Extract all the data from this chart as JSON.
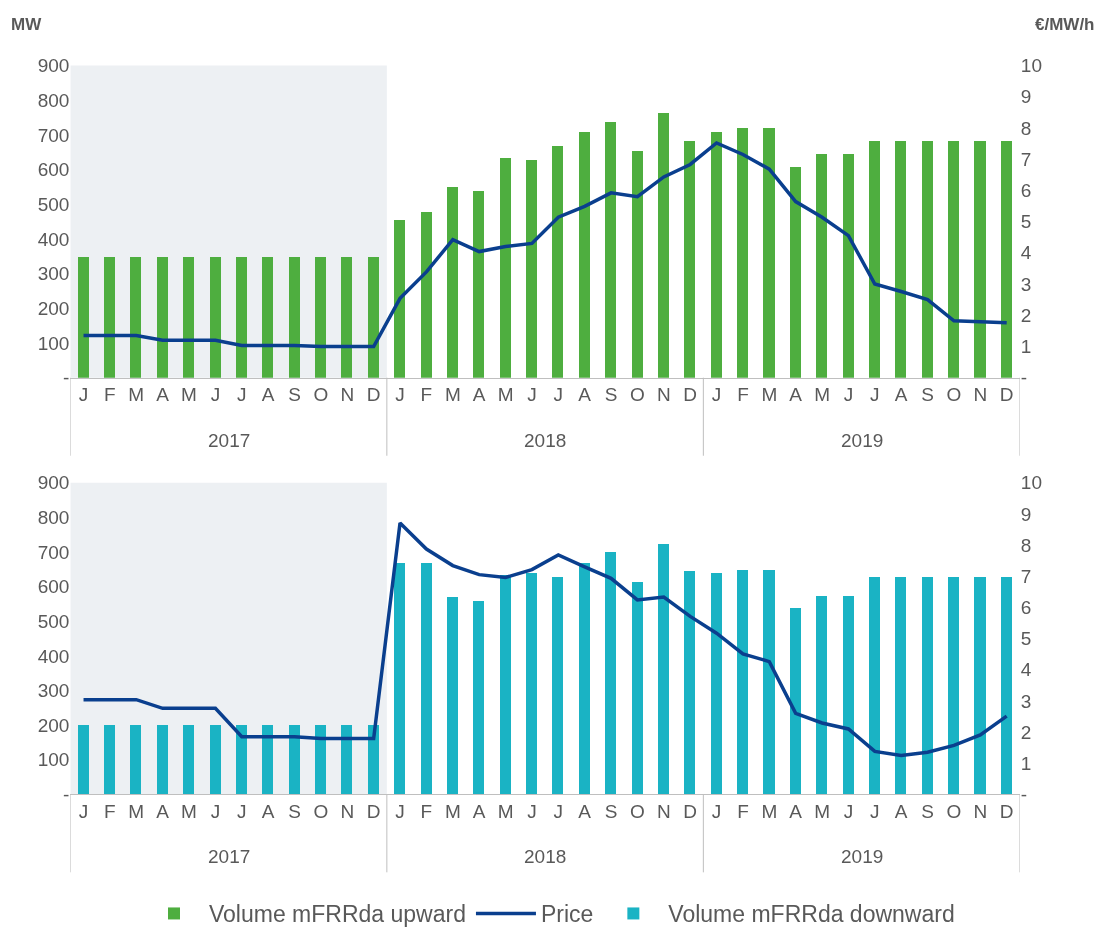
{
  "chart_data": [
    {
      "type": "bar",
      "ylabel": "MW",
      "y2label": "€/MW/h",
      "legend": "bottom",
      "grid": false,
      "categories": [
        "J",
        "F",
        "M",
        "A",
        "M",
        "J",
        "J",
        "A",
        "S",
        "O",
        "N",
        "D",
        "J",
        "F",
        "M",
        "A",
        "M",
        "J",
        "J",
        "A",
        "S",
        "O",
        "N",
        "D",
        "J",
        "F",
        "M",
        "A",
        "M",
        "J",
        "J",
        "A",
        "S",
        "O",
        "N",
        "D"
      ],
      "ylim": [
        0,
        900
      ],
      "yticks": [
        {
          "value": 0,
          "label": "-"
        },
        100,
        200,
        300,
        400,
        500,
        600,
        700,
        800,
        900
      ],
      "y2lim": [
        0,
        10
      ],
      "y2ticks": [
        {
          "value": 0,
          "label": "-"
        },
        1,
        2,
        3,
        4,
        5,
        6,
        7,
        8,
        9,
        10
      ],
      "bands": [
        {
          "axis": "x",
          "from": "J",
          "to": "D",
          "color": "#edf0f3"
        }
      ],
      "annotations": [
        "2017",
        "2018",
        "2019"
      ],
      "series": [
        {
          "name": "Volume mFRRda upward",
          "color": "#4eae3f",
          "values": [
            350,
            350,
            350,
            350,
            350,
            350,
            350,
            350,
            350,
            350,
            350,
            350,
            455,
            480,
            550,
            540,
            635,
            630,
            670,
            710,
            740,
            655,
            765,
            685,
            710,
            720,
            720,
            610,
            645,
            645,
            685,
            685,
            685,
            685,
            685,
            685
          ]
        },
        {
          "name": "Price",
          "type": "line",
          "axis": "y2",
          "color": "#0a3f8e",
          "values": [
            1.35,
            1.35,
            1.35,
            1.2,
            1.2,
            1.2,
            1.03,
            1.03,
            1.03,
            1.0,
            1.0,
            1.0,
            2.54,
            3.39,
            4.42,
            4.04,
            4.2,
            4.3,
            5.14,
            5.49,
            5.92,
            5.8,
            6.43,
            6.83,
            7.52,
            7.15,
            6.68,
            5.64,
            5.14,
            4.55,
            3.0,
            2.76,
            2.5,
            1.82,
            1.79,
            1.76
          ]
        }
      ]
    },
    {
      "type": "bar",
      "legend": "bottom",
      "grid": false,
      "categories": [
        "J",
        "F",
        "M",
        "A",
        "M",
        "J",
        "J",
        "A",
        "S",
        "O",
        "N",
        "D",
        "J",
        "F",
        "M",
        "A",
        "M",
        "J",
        "J",
        "A",
        "S",
        "O",
        "N",
        "D",
        "J",
        "F",
        "M",
        "A",
        "M",
        "J",
        "J",
        "A",
        "S",
        "O",
        "N",
        "D"
      ],
      "ylim": [
        0,
        900
      ],
      "yticks": [
        {
          "value": 0,
          "label": "-"
        },
        100,
        200,
        300,
        400,
        500,
        600,
        700,
        800,
        900
      ],
      "y2lim": [
        0,
        10
      ],
      "y2ticks": [
        {
          "value": 0,
          "label": "-"
        },
        1,
        2,
        3,
        4,
        5,
        6,
        7,
        8,
        9,
        10
      ],
      "bands": [
        {
          "axis": "x",
          "from": "J",
          "to": "D",
          "color": "#edf0f3"
        }
      ],
      "annotations": [
        "2017",
        "2018",
        "2019"
      ],
      "series": [
        {
          "name": "Volume mFRRda downward",
          "color": "#1ab3c4",
          "values": [
            200,
            200,
            200,
            200,
            200,
            200,
            200,
            200,
            200,
            200,
            200,
            200,
            670,
            670,
            570,
            560,
            635,
            640,
            630,
            670,
            700,
            615,
            725,
            645,
            640,
            650,
            650,
            540,
            575,
            575,
            630,
            630,
            630,
            630,
            630,
            630
          ]
        },
        {
          "name": "Price",
          "type": "line",
          "axis": "y2",
          "color": "#0a3f8e",
          "values": [
            3.04,
            3.04,
            3.04,
            2.76,
            2.76,
            2.76,
            1.85,
            1.85,
            1.85,
            1.79,
            1.79,
            1.79,
            8.71,
            7.87,
            7.34,
            7.05,
            6.96,
            7.21,
            7.68,
            7.3,
            6.93,
            6.24,
            6.33,
            5.71,
            5.17,
            4.51,
            4.26,
            2.6,
            2.29,
            2.1,
            1.38,
            1.25,
            1.35,
            1.57,
            1.91,
            2.51
          ]
        }
      ]
    }
  ]
}
